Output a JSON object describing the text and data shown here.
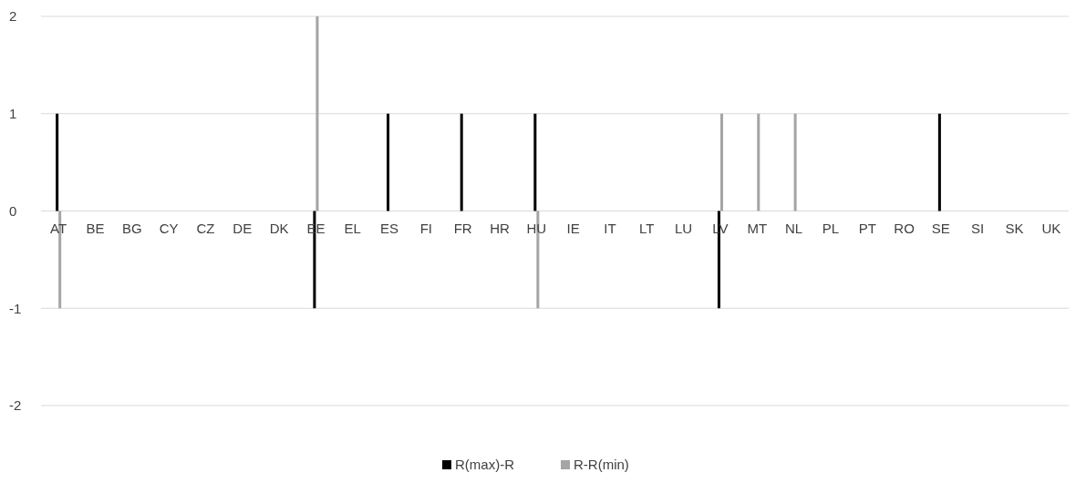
{
  "chart_data": {
    "type": "bar",
    "categories": [
      "AT",
      "BE",
      "BG",
      "CY",
      "CZ",
      "DE",
      "DK",
      "EE",
      "EL",
      "ES",
      "FI",
      "FR",
      "HR",
      "HU",
      "IE",
      "IT",
      "LT",
      "LU",
      "LV",
      "MT",
      "NL",
      "PL",
      "PT",
      "RO",
      "SE",
      "SI",
      "SK",
      "UK"
    ],
    "series": [
      {
        "name": "R(max)-R",
        "color": "#000000",
        "values": [
          1,
          0,
          0,
          0,
          0,
          0,
          0,
          -1,
          0,
          1,
          0,
          1,
          0,
          1,
          0,
          0,
          0,
          0,
          -1,
          0,
          0,
          0,
          0,
          0,
          1,
          0,
          0,
          0
        ]
      },
      {
        "name": "R-R(min)",
        "color": "#a5a5a5",
        "values": [
          -1,
          0,
          0,
          0,
          0,
          0,
          0,
          2,
          0,
          0,
          0,
          0,
          0,
          -1,
          0,
          0,
          0,
          0,
          1,
          1,
          1,
          0,
          0,
          0,
          0,
          0,
          0,
          0
        ]
      }
    ],
    "ylim": [
      -2,
      2
    ],
    "yticks": [
      -2,
      -1,
      0,
      1,
      2
    ],
    "grid": "y",
    "legend": "bottom"
  }
}
